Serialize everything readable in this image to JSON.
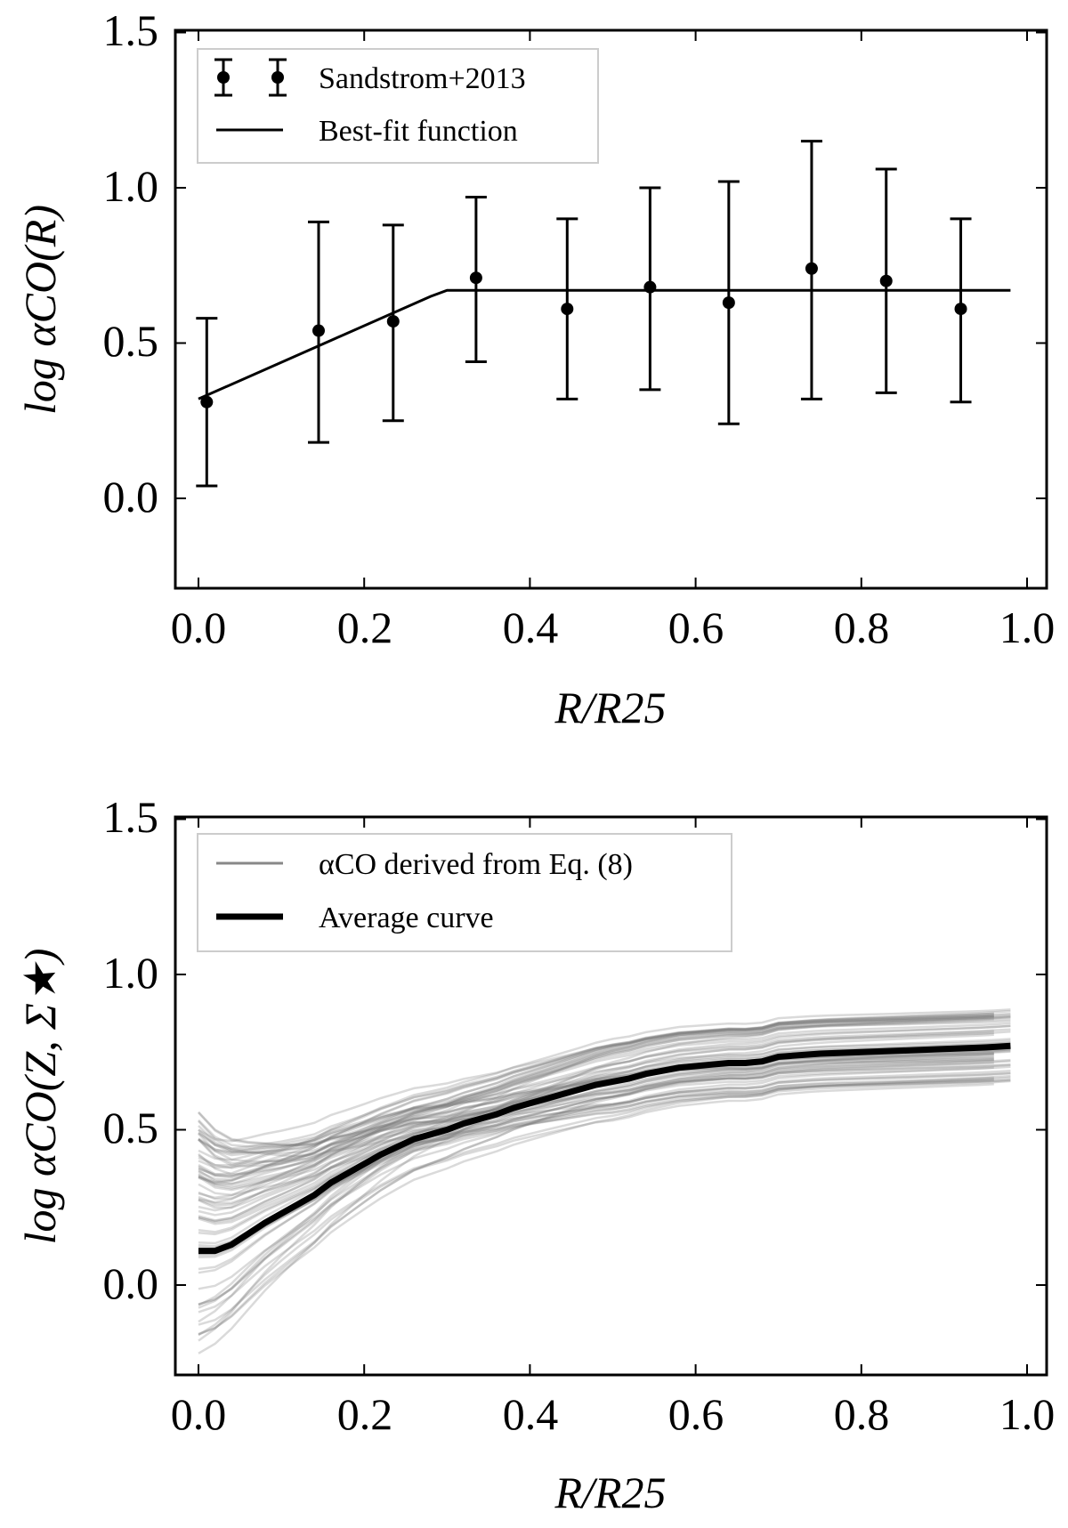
{
  "chart_data": [
    {
      "type": "line",
      "panel": "top",
      "xlabel": "R/R25",
      "ylabel": "log αCO(R)",
      "xlim": [
        -0.03,
        1.02
      ],
      "ylim": [
        -0.3,
        1.5
      ],
      "xticks": [
        "0.0",
        "0.2",
        "0.4",
        "0.6",
        "0.8",
        "1.0"
      ],
      "yticks": [
        "0.0",
        "0.5",
        "1.0",
        "1.5"
      ],
      "legend": {
        "placement": "top-left",
        "entries": [
          {
            "label": "Sandstrom+2013",
            "marker": "errorbar"
          },
          {
            "label": "Best-fit function",
            "marker": "line"
          }
        ]
      },
      "series": [
        {
          "name": "Sandstrom+2013",
          "kind": "errorbar",
          "x": [
            0.01,
            0.145,
            0.235,
            0.335,
            0.445,
            0.545,
            0.64,
            0.74,
            0.83,
            0.92
          ],
          "y": [
            0.31,
            0.54,
            0.57,
            0.71,
            0.61,
            0.68,
            0.63,
            0.74,
            0.7,
            0.61
          ],
          "yerr_low": [
            0.04,
            0.18,
            0.25,
            0.44,
            0.32,
            0.35,
            0.24,
            0.32,
            0.34,
            0.31
          ],
          "yerr_high": [
            0.58,
            0.89,
            0.88,
            0.97,
            0.9,
            1.0,
            1.02,
            1.15,
            1.06,
            0.9
          ]
        },
        {
          "name": "Best-fit function",
          "kind": "line",
          "x": [
            0.0,
            0.28,
            0.3,
            0.98
          ],
          "y": [
            0.32,
            0.65,
            0.67,
            0.67
          ]
        }
      ]
    },
    {
      "type": "line",
      "panel": "bottom",
      "xlabel": "R/R25",
      "ylabel": "log αCO(Z, Σ★)",
      "xlim": [
        -0.03,
        1.02
      ],
      "ylim": [
        -0.3,
        1.5
      ],
      "xticks": [
        "0.0",
        "0.2",
        "0.4",
        "0.6",
        "0.8",
        "1.0"
      ],
      "yticks": [
        "0.0",
        "0.5",
        "1.0",
        "1.5"
      ],
      "legend": {
        "placement": "top-left",
        "entries": [
          {
            "label": "αCO derived from Eq. (8)",
            "marker": "thin-gray-line"
          },
          {
            "label": "Average curve",
            "marker": "thick-black-line"
          }
        ]
      },
      "ensemble": {
        "name": "αCO derived from Eq. (8)",
        "count": 70,
        "y_start_range": [
          -0.22,
          0.56
        ],
        "y_end_range": [
          0.65,
          0.89
        ]
      },
      "series": [
        {
          "name": "Average curve",
          "kind": "line",
          "x": [
            0.0,
            0.02,
            0.04,
            0.06,
            0.08,
            0.1,
            0.12,
            0.14,
            0.16,
            0.18,
            0.2,
            0.22,
            0.24,
            0.26,
            0.28,
            0.3,
            0.32,
            0.34,
            0.36,
            0.38,
            0.4,
            0.42,
            0.44,
            0.46,
            0.48,
            0.5,
            0.52,
            0.54,
            0.56,
            0.58,
            0.6,
            0.62,
            0.64,
            0.66,
            0.68,
            0.7,
            0.75,
            0.8,
            0.85,
            0.9,
            0.95,
            0.98
          ],
          "y": [
            0.11,
            0.11,
            0.13,
            0.165,
            0.2,
            0.23,
            0.26,
            0.29,
            0.33,
            0.36,
            0.39,
            0.42,
            0.445,
            0.47,
            0.485,
            0.5,
            0.52,
            0.535,
            0.55,
            0.57,
            0.585,
            0.6,
            0.615,
            0.63,
            0.645,
            0.655,
            0.665,
            0.68,
            0.69,
            0.7,
            0.705,
            0.71,
            0.715,
            0.715,
            0.72,
            0.735,
            0.745,
            0.75,
            0.755,
            0.76,
            0.765,
            0.77
          ]
        }
      ]
    }
  ]
}
